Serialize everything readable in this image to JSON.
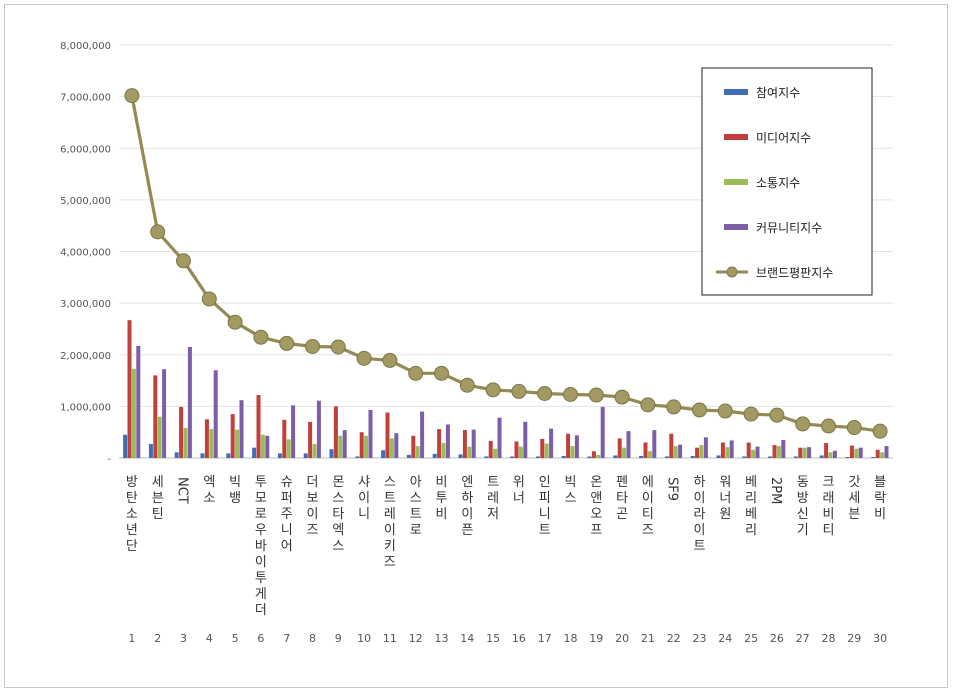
{
  "chart_data": {
    "type": "bar",
    "title": "",
    "xlabel": "",
    "ylabel": "",
    "ylim": [
      0,
      8000000
    ],
    "yticks": [
      "-",
      "1,000,000",
      "2,000,000",
      "3,000,000",
      "4,000,000",
      "5,000,000",
      "6,000,000",
      "7,000,000",
      "8,000,000"
    ],
    "grid": true,
    "legend_position": "top-right",
    "categories": [
      "방탄소년단",
      "세븐틴",
      "NCT",
      "엑소",
      "빅뱅",
      "투모로우바이투게더",
      "슈퍼주니어",
      "더보이즈",
      "몬스타엑스",
      "샤이니",
      "스트레이키즈",
      "아스트로",
      "비투비",
      "엔하이픈",
      "트레저",
      "위너",
      "인피니트",
      "빅스",
      "온앤오프",
      "펜타곤",
      "에이티즈",
      "SF9",
      "하이라이트",
      "워너원",
      "베리베리",
      "2PM",
      "동방신기",
      "크래비티",
      "갓세븐",
      "블락비"
    ],
    "ranks": [
      "1",
      "2",
      "3",
      "4",
      "5",
      "6",
      "7",
      "8",
      "9",
      "10",
      "11",
      "12",
      "13",
      "14",
      "15",
      "16",
      "17",
      "18",
      "19",
      "20",
      "21",
      "22",
      "23",
      "24",
      "25",
      "26",
      "27",
      "28",
      "29",
      "30"
    ],
    "series": [
      {
        "name": "참여지수",
        "color": "#3f6fb5",
        "kind": "bar",
        "values": [
          450000,
          270000,
          110000,
          90000,
          90000,
          200000,
          90000,
          90000,
          170000,
          30000,
          150000,
          60000,
          80000,
          70000,
          30000,
          30000,
          30000,
          40000,
          30000,
          50000,
          40000,
          30000,
          40000,
          50000,
          30000,
          30000,
          30000,
          50000,
          20000,
          20000
        ]
      },
      {
        "name": "미디어지수",
        "color": "#c0403c",
        "kind": "bar",
        "values": [
          2670000,
          1600000,
          990000,
          750000,
          850000,
          1220000,
          740000,
          700000,
          1000000,
          500000,
          880000,
          430000,
          560000,
          540000,
          330000,
          320000,
          370000,
          470000,
          130000,
          380000,
          300000,
          470000,
          200000,
          300000,
          300000,
          250000,
          200000,
          290000,
          240000,
          160000
        ]
      },
      {
        "name": "소통지수",
        "color": "#9bbb59",
        "kind": "bar",
        "values": [
          1730000,
          800000,
          580000,
          560000,
          550000,
          450000,
          360000,
          270000,
          430000,
          430000,
          380000,
          230000,
          290000,
          220000,
          180000,
          220000,
          280000,
          230000,
          60000,
          200000,
          130000,
          230000,
          250000,
          210000,
          160000,
          230000,
          200000,
          110000,
          180000,
          110000
        ]
      },
      {
        "name": "커뮤니티지수",
        "color": "#7b5ea7",
        "kind": "bar",
        "values": [
          2170000,
          1720000,
          2150000,
          1700000,
          1120000,
          430000,
          1020000,
          1110000,
          540000,
          930000,
          480000,
          900000,
          650000,
          550000,
          780000,
          700000,
          570000,
          440000,
          990000,
          520000,
          540000,
          260000,
          400000,
          340000,
          220000,
          350000,
          210000,
          140000,
          200000,
          230000
        ]
      },
      {
        "name": "브랜드평판지수",
        "color": "#948a54",
        "kind": "line",
        "values": [
          7020000,
          4380000,
          3820000,
          3080000,
          2630000,
          2340000,
          2220000,
          2160000,
          2150000,
          1930000,
          1890000,
          1640000,
          1640000,
          1410000,
          1320000,
          1290000,
          1250000,
          1230000,
          1220000,
          1180000,
          1030000,
          990000,
          930000,
          910000,
          850000,
          830000,
          660000,
          620000,
          590000,
          520000
        ]
      }
    ]
  }
}
